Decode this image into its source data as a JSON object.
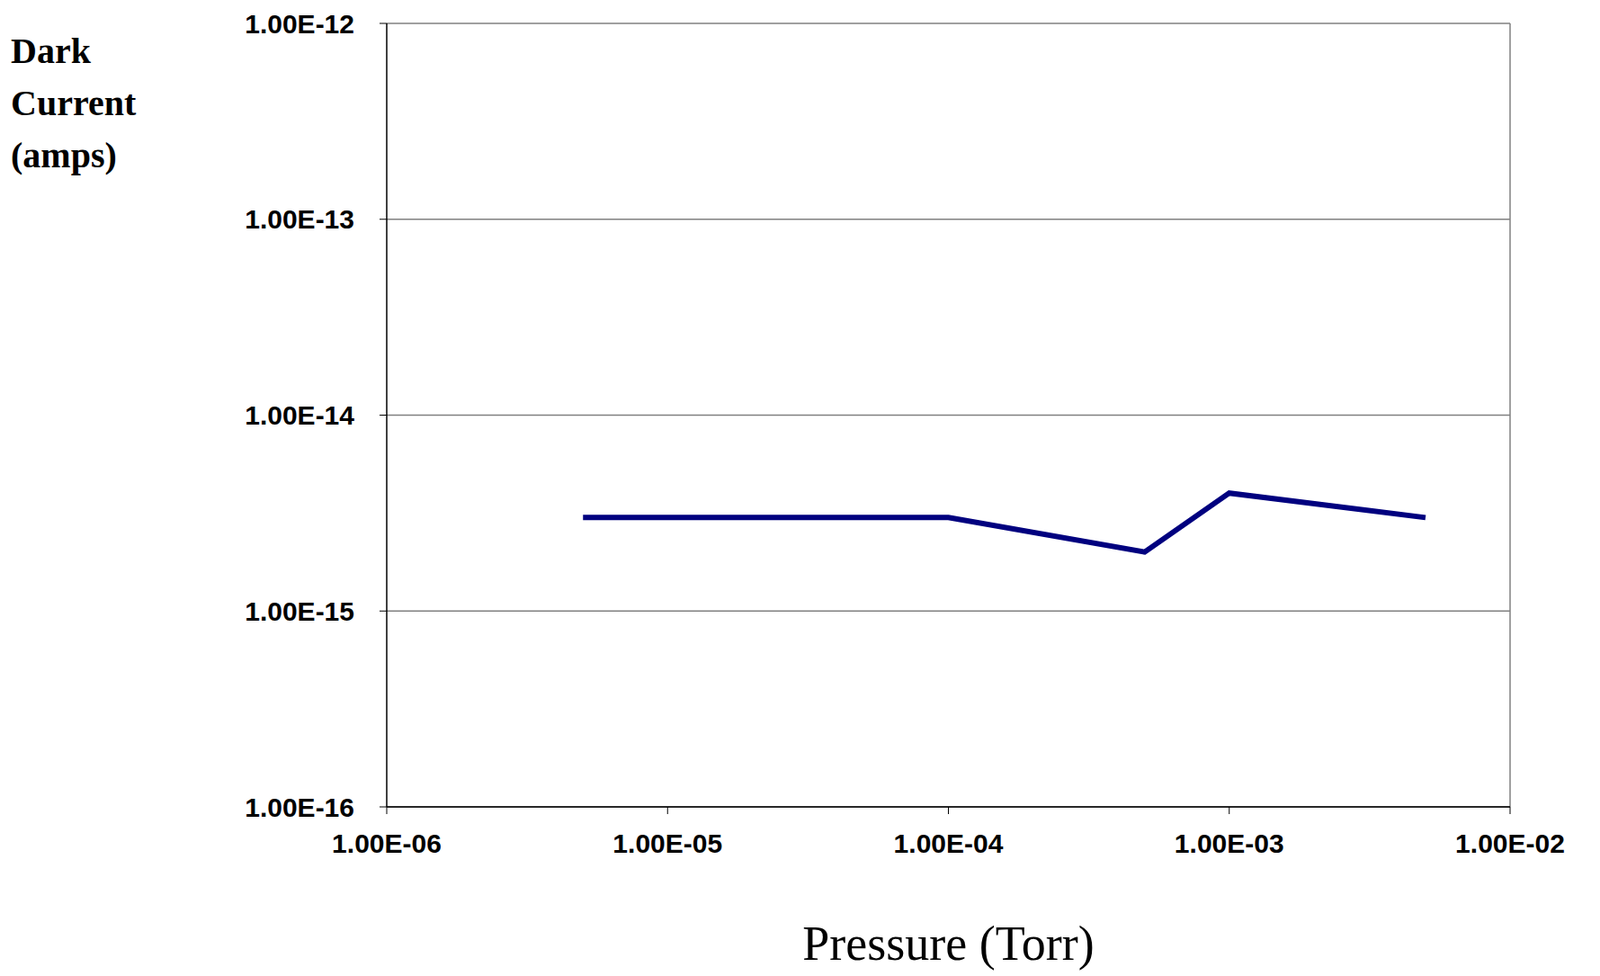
{
  "chart_data": {
    "type": "line",
    "x_label": "Pressure (Torr)",
    "y_label": "Dark Current (amps)",
    "x": [
      5e-06,
      0.0001,
      0.0005,
      0.001,
      0.005
    ],
    "values": [
      3e-15,
      3e-15,
      2e-15,
      4e-15,
      3e-15
    ],
    "color": "#00007f",
    "log": true,
    "xlim": [
      1e-06,
      0.01
    ],
    "ylim": [
      1e-16,
      1e-12
    ],
    "xticks": [
      {
        "value": 1e-06,
        "label": "1.00E-06"
      },
      {
        "value": 1e-05,
        "label": "1.00E-05"
      },
      {
        "value": 0.0001,
        "label": "1.00E-04"
      },
      {
        "value": 0.001,
        "label": "1.00E-03"
      },
      {
        "value": 0.01,
        "label": "1.00E-02"
      }
    ],
    "yticks": [
      {
        "value": 1e-16,
        "label": "1.00E-16"
      },
      {
        "value": 1e-15,
        "label": "1.00E-15"
      },
      {
        "value": 1e-14,
        "label": "1.00E-14"
      },
      {
        "value": 1e-13,
        "label": "1.00E-13"
      },
      {
        "value": 1e-12,
        "label": "1.00E-12"
      }
    ],
    "grid": true,
    "marker": "none",
    "line_style": "solid"
  }
}
